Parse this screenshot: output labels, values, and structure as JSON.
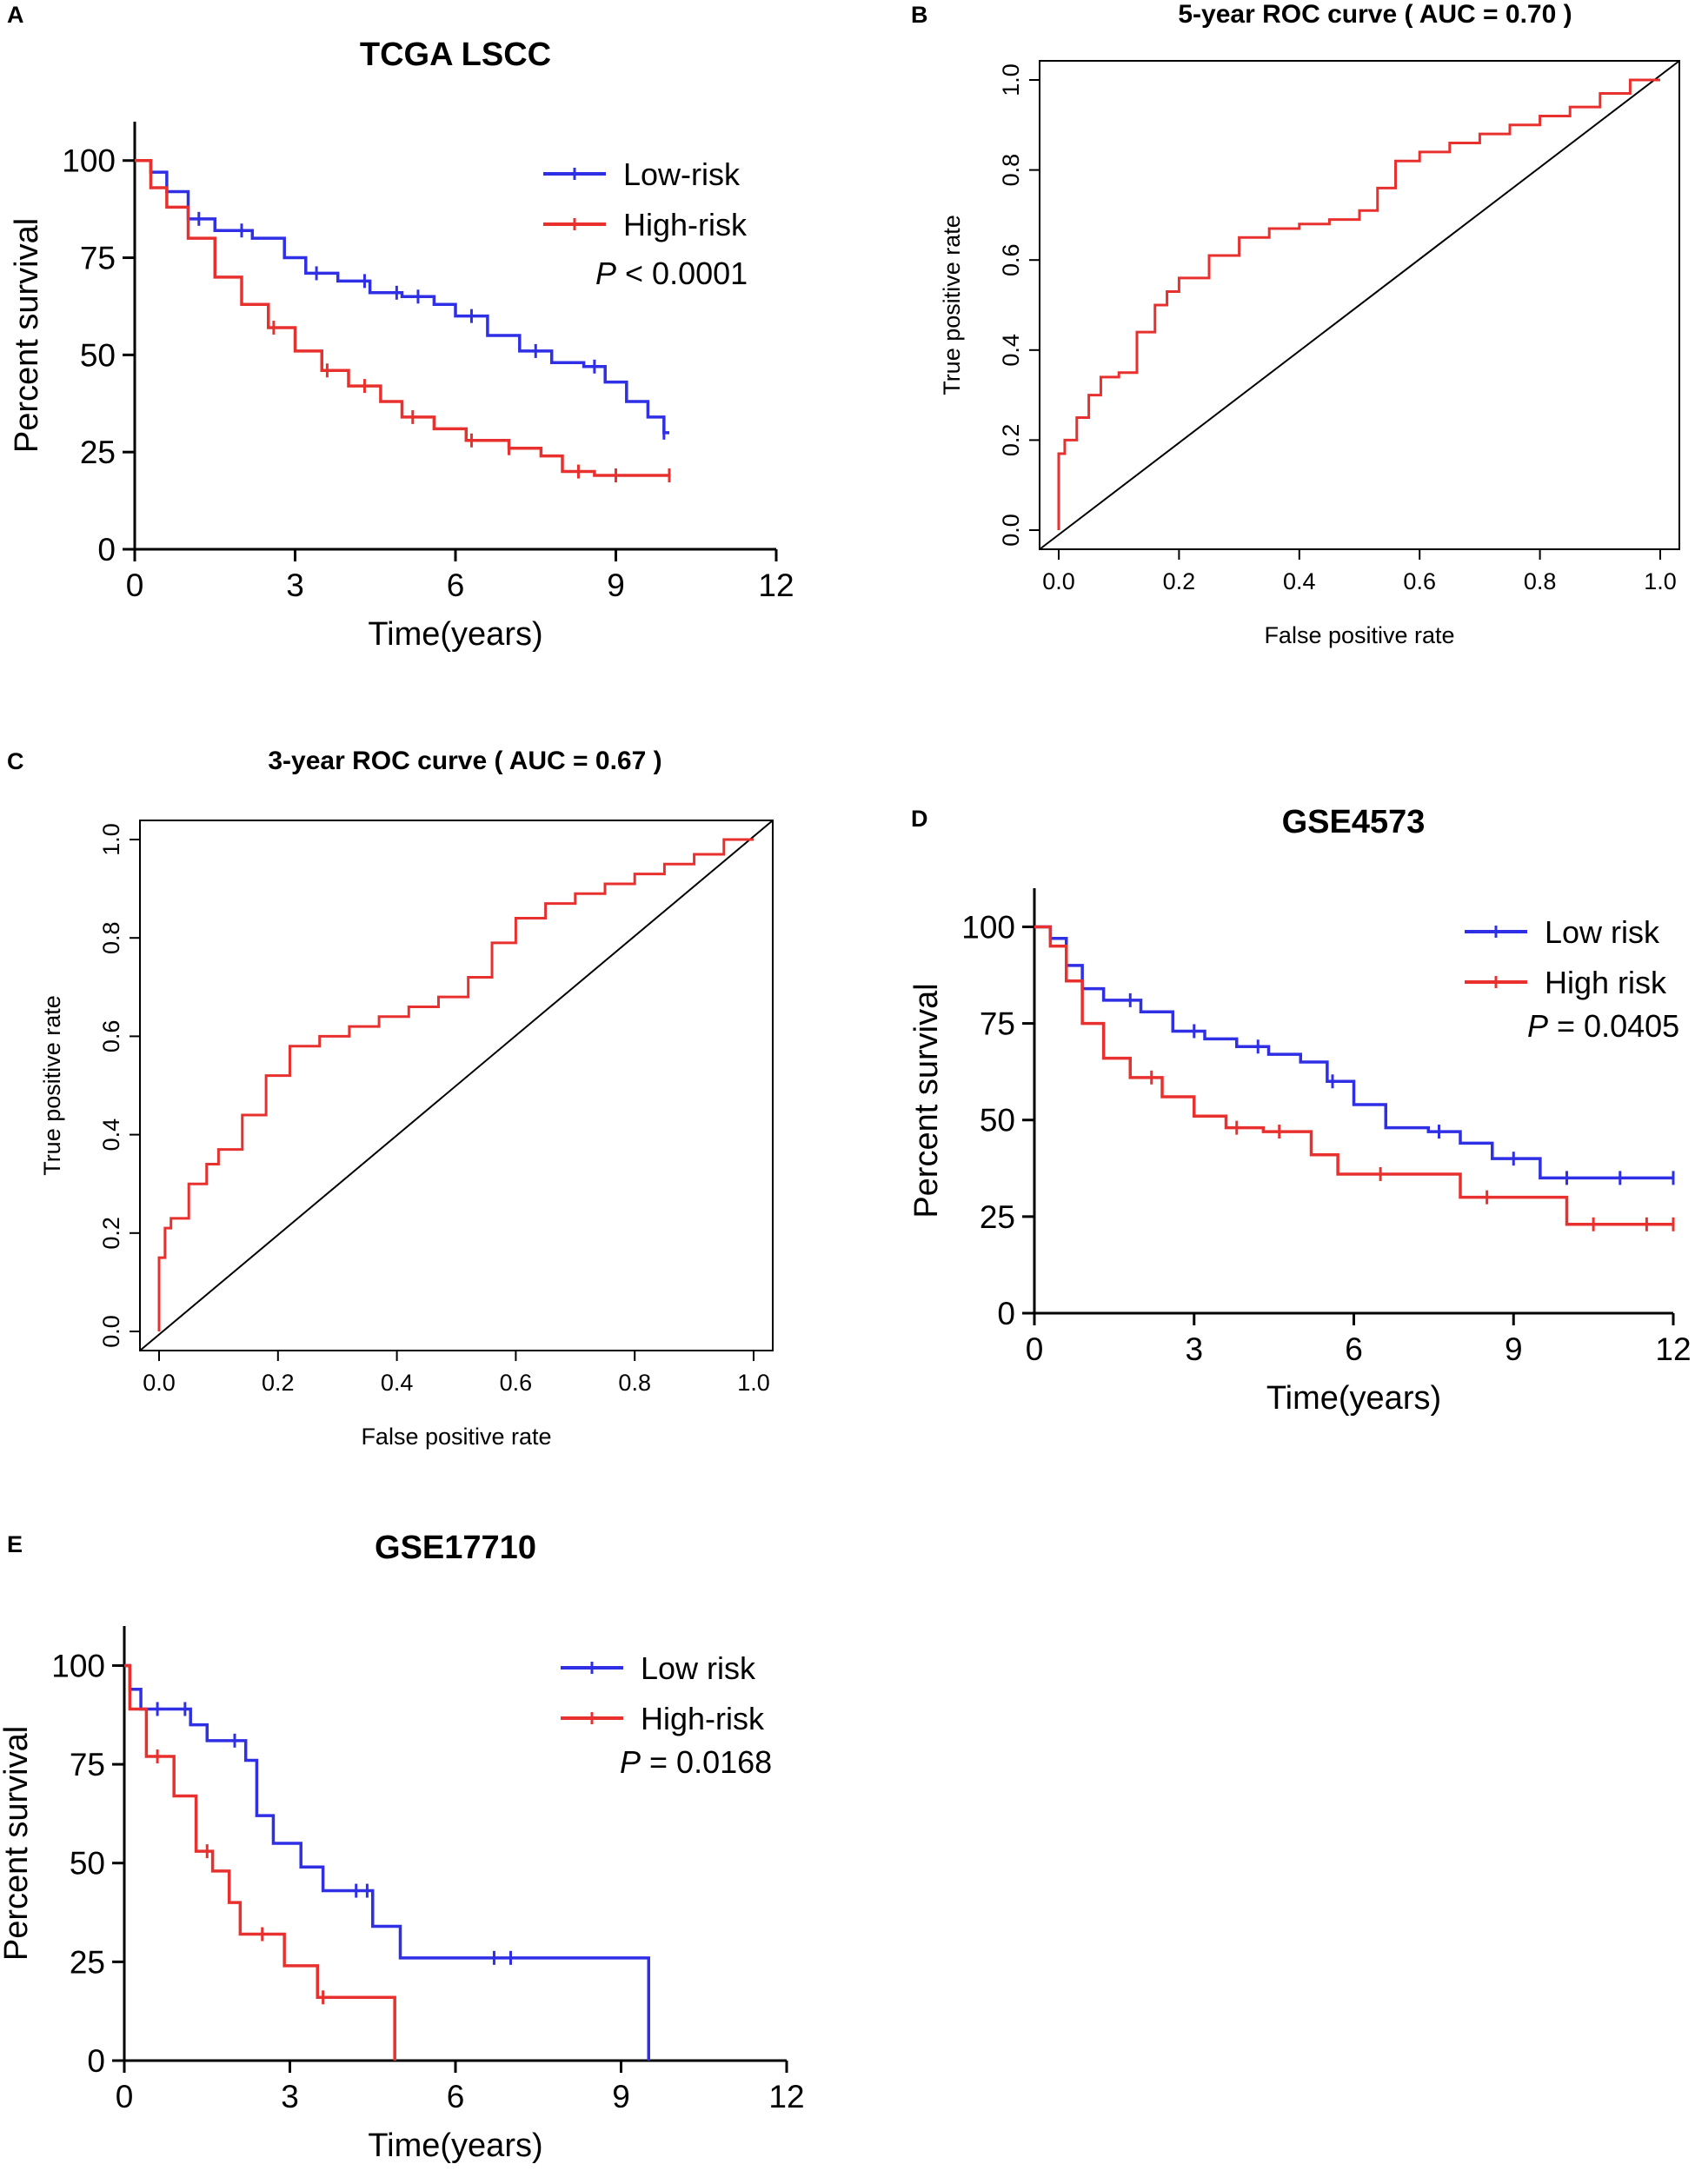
{
  "colors": {
    "low": "#2f2fe6",
    "high": "#e8312e",
    "axis": "#000000"
  },
  "chart_data": [
    {
      "id": "A",
      "panel_label": "A",
      "type": "line",
      "style": "km",
      "title": "TCGA LSCC",
      "xlabel": "Time(years)",
      "ylabel": "Percent survival",
      "xlim": [
        0,
        12
      ],
      "ylim": [
        0,
        110
      ],
      "xticks": [
        0,
        3,
        6,
        9,
        12
      ],
      "yticks": [
        0,
        25,
        50,
        75,
        100
      ],
      "pvalue": {
        "prefix": "P",
        "text": " < 0.0001"
      },
      "series": [
        {
          "name": "Low-risk",
          "color": "#2f2fe6",
          "x": [
            0,
            0.3,
            0.6,
            1.0,
            1.5,
            2.2,
            2.8,
            3.2,
            3.8,
            4.4,
            5.0,
            5.6,
            6.0,
            6.6,
            7.2,
            7.8,
            8.4,
            8.8,
            9.2,
            9.6,
            9.9,
            10.0
          ],
          "y": [
            100,
            97,
            92,
            85,
            82,
            80,
            75,
            71,
            69,
            66,
            65,
            63,
            60,
            55,
            51,
            48,
            47,
            43,
            38,
            34,
            30,
            30
          ],
          "censor": [
            1.2,
            2.0,
            3.4,
            4.3,
            4.9,
            5.3,
            6.3,
            7.5,
            8.6,
            9.9
          ]
        },
        {
          "name": "High-risk",
          "color": "#e8312e",
          "x": [
            0,
            0.3,
            0.6,
            1.0,
            1.5,
            2.0,
            2.5,
            3.0,
            3.5,
            4.0,
            4.6,
            5.0,
            5.6,
            6.2,
            7.0,
            7.6,
            8.0,
            8.6,
            9.2,
            10.0
          ],
          "y": [
            100,
            93,
            88,
            80,
            70,
            63,
            57,
            51,
            46,
            42,
            38,
            34,
            31,
            28,
            26,
            24,
            20,
            19,
            19,
            19
          ],
          "censor": [
            2.6,
            3.6,
            4.3,
            5.2,
            6.3,
            7.0,
            8.3,
            9.0,
            10.0
          ]
        }
      ]
    },
    {
      "id": "B",
      "panel_label": "B",
      "type": "line",
      "style": "roc",
      "title": "5-year ROC curve ( AUC =  0.70 )",
      "xlabel": "False positive rate",
      "ylabel": "True positive rate",
      "xlim": [
        0,
        1
      ],
      "ylim": [
        0,
        1
      ],
      "xticks": [
        0.0,
        0.2,
        0.4,
        0.6,
        0.8,
        1.0
      ],
      "yticks": [
        0.0,
        0.2,
        0.4,
        0.6,
        0.8,
        1.0
      ],
      "tick_labels": [
        "0.0",
        "0.2",
        "0.4",
        "0.6",
        "0.8",
        "1.0"
      ],
      "series": [
        {
          "name": "ROC",
          "color": "#e8312e",
          "x": [
            0.0,
            0.0,
            0.01,
            0.03,
            0.05,
            0.07,
            0.1,
            0.13,
            0.16,
            0.18,
            0.2,
            0.25,
            0.3,
            0.35,
            0.4,
            0.45,
            0.5,
            0.53,
            0.56,
            0.6,
            0.65,
            0.7,
            0.75,
            0.8,
            0.85,
            0.9,
            0.95,
            1.0
          ],
          "y": [
            0.0,
            0.1,
            0.17,
            0.2,
            0.25,
            0.3,
            0.34,
            0.35,
            0.44,
            0.5,
            0.53,
            0.56,
            0.61,
            0.65,
            0.67,
            0.68,
            0.69,
            0.71,
            0.76,
            0.82,
            0.84,
            0.86,
            0.88,
            0.9,
            0.92,
            0.94,
            0.97,
            1.0
          ]
        }
      ]
    },
    {
      "id": "C",
      "panel_label": "C",
      "type": "line",
      "style": "roc",
      "title": "3-year ROC curve ( AUC =  0.67 )",
      "xlabel": "False positive rate",
      "ylabel": "True positive rate",
      "xlim": [
        0,
        1
      ],
      "ylim": [
        0,
        1
      ],
      "xticks": [
        0.0,
        0.2,
        0.4,
        0.6,
        0.8,
        1.0
      ],
      "yticks": [
        0.0,
        0.2,
        0.4,
        0.6,
        0.8,
        1.0
      ],
      "tick_labels": [
        "0.0",
        "0.2",
        "0.4",
        "0.6",
        "0.8",
        "1.0"
      ],
      "series": [
        {
          "name": "ROC",
          "color": "#e8312e",
          "x": [
            0.0,
            0.0,
            0.01,
            0.02,
            0.05,
            0.08,
            0.1,
            0.14,
            0.18,
            0.22,
            0.27,
            0.32,
            0.37,
            0.42,
            0.47,
            0.52,
            0.56,
            0.6,
            0.65,
            0.7,
            0.75,
            0.8,
            0.85,
            0.9,
            0.95,
            1.0
          ],
          "y": [
            0.0,
            0.07,
            0.15,
            0.21,
            0.23,
            0.3,
            0.34,
            0.37,
            0.44,
            0.52,
            0.58,
            0.6,
            0.62,
            0.64,
            0.66,
            0.68,
            0.72,
            0.79,
            0.84,
            0.87,
            0.89,
            0.91,
            0.93,
            0.95,
            0.97,
            1.0
          ]
        }
      ]
    },
    {
      "id": "D",
      "panel_label": "D",
      "type": "line",
      "style": "km",
      "title": "GSE4573",
      "xlabel": "Time(years)",
      "ylabel": "Percent survival",
      "xlim": [
        0,
        12
      ],
      "ylim": [
        0,
        110
      ],
      "xticks": [
        0,
        3,
        6,
        9,
        12
      ],
      "yticks": [
        0,
        25,
        50,
        75,
        100
      ],
      "pvalue": {
        "prefix": "P",
        "text": " = 0.0405"
      },
      "series": [
        {
          "name": "Low risk",
          "color": "#2f2fe6",
          "x": [
            0,
            0.3,
            0.6,
            0.9,
            1.3,
            2.0,
            2.6,
            3.2,
            3.8,
            4.4,
            5.0,
            5.5,
            6.0,
            6.6,
            7.4,
            8.0,
            8.6,
            9.5,
            10.5,
            12.0
          ],
          "y": [
            100,
            97,
            90,
            84,
            81,
            78,
            73,
            71,
            69,
            67,
            65,
            60,
            54,
            48,
            47,
            44,
            40,
            35,
            35,
            35
          ],
          "censor": [
            1.8,
            3.0,
            4.2,
            5.6,
            7.6,
            9.0,
            10.0,
            11.0,
            12.0
          ]
        },
        {
          "name": "High risk",
          "color": "#e8312e",
          "x": [
            0,
            0.3,
            0.6,
            0.9,
            1.3,
            1.8,
            2.4,
            3.0,
            3.6,
            4.3,
            5.2,
            5.7,
            6.5,
            8.0,
            10.0,
            11.0,
            12.0
          ],
          "y": [
            100,
            95,
            86,
            75,
            66,
            61,
            56,
            51,
            48,
            47,
            41,
            36,
            36,
            30,
            23,
            23,
            23
          ],
          "censor": [
            2.2,
            3.8,
            4.6,
            6.5,
            8.5,
            10.5,
            11.5,
            12.0
          ]
        }
      ]
    },
    {
      "id": "E",
      "panel_label": "E",
      "type": "line",
      "style": "km",
      "title": "GSE17710",
      "xlabel": "Time(years)",
      "ylabel": "Percent survival",
      "xlim": [
        0,
        12
      ],
      "ylim": [
        0,
        110
      ],
      "xticks": [
        0,
        3,
        6,
        9,
        12
      ],
      "yticks": [
        0,
        25,
        50,
        75,
        100
      ],
      "pvalue": {
        "prefix": "P",
        "text": " = 0.0168"
      },
      "series": [
        {
          "name": "Low risk",
          "color": "#2f2fe6",
          "x": [
            0,
            0.1,
            0.3,
            1.2,
            1.5,
            2.2,
            2.4,
            2.7,
            3.2,
            3.6,
            4.5,
            5.0,
            9.5,
            9.5
          ],
          "y": [
            100,
            94,
            89,
            85,
            81,
            76,
            62,
            55,
            49,
            43,
            34,
            26,
            26,
            0
          ],
          "censor": [
            0.6,
            1.1,
            2.0,
            4.2,
            4.4,
            6.7,
            7.0
          ]
        },
        {
          "name": "High-risk",
          "color": "#e8312e",
          "x": [
            0,
            0.1,
            0.4,
            0.9,
            1.3,
            1.6,
            1.9,
            2.1,
            2.9,
            3.5,
            4.9,
            4.9
          ],
          "y": [
            100,
            89,
            77,
            67,
            53,
            48,
            40,
            32,
            24,
            16,
            16,
            0
          ],
          "censor": [
            0.6,
            1.5,
            2.5,
            3.6
          ]
        }
      ]
    }
  ]
}
